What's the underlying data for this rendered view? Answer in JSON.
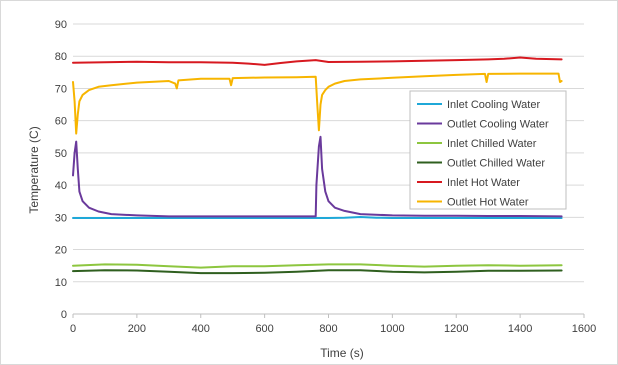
{
  "chart_data": {
    "type": "line",
    "title": "",
    "xlabel": "Time (s)",
    "ylabel": "Temperature (C)",
    "xlim": [
      0,
      1600
    ],
    "ylim": [
      0,
      90
    ],
    "x_ticks": [
      0,
      200,
      400,
      600,
      800,
      1000,
      1200,
      1400,
      1600
    ],
    "y_ticks": [
      0,
      10,
      20,
      30,
      40,
      50,
      60,
      70,
      80,
      90
    ],
    "grid": "horizontal",
    "legend_position": "right",
    "series": [
      {
        "name": "Inlet Cooling Water",
        "color": "#1fa8d8",
        "x": [
          0,
          200,
          400,
          600,
          800,
          850,
          900,
          950,
          1000,
          1200,
          1400,
          1530
        ],
        "y": [
          29.8,
          29.8,
          29.8,
          29.8,
          29.8,
          29.9,
          30.1,
          29.9,
          29.8,
          29.8,
          29.8,
          29.8
        ]
      },
      {
        "name": "Outlet Cooling Water",
        "color": "#6a3a9c",
        "x": [
          0,
          5,
          10,
          15,
          20,
          30,
          50,
          80,
          120,
          200,
          300,
          400,
          500,
          600,
          700,
          760,
          762,
          770,
          775,
          780,
          790,
          800,
          820,
          850,
          900,
          1000,
          1100,
          1200,
          1300,
          1400,
          1530
        ],
        "y": [
          43,
          50,
          53.5,
          45,
          38,
          35,
          33,
          31.8,
          31,
          30.6,
          30.3,
          30.3,
          30.3,
          30.3,
          30.3,
          30.3,
          40,
          52,
          55,
          45,
          38,
          35,
          33,
          32,
          31,
          30.6,
          30.5,
          30.5,
          30.4,
          30.4,
          30.3
        ]
      },
      {
        "name": "Inlet Chilled Water",
        "color": "#8dc63f",
        "x": [
          0,
          100,
          200,
          300,
          400,
          500,
          600,
          700,
          800,
          900,
          1000,
          1100,
          1200,
          1300,
          1400,
          1530
        ],
        "y": [
          15,
          15.4,
          15.3,
          14.8,
          14.4,
          14.8,
          14.8,
          15.1,
          15.4,
          15.4,
          15,
          14.7,
          15,
          15.1,
          15,
          15.1
        ]
      },
      {
        "name": "Outlet Chilled Water",
        "color": "#2f5f1f",
        "x": [
          0,
          100,
          200,
          300,
          400,
          500,
          600,
          700,
          800,
          900,
          1000,
          1100,
          1200,
          1300,
          1400,
          1530
        ],
        "y": [
          13.3,
          13.6,
          13.5,
          13.1,
          12.7,
          12.7,
          12.8,
          13.1,
          13.6,
          13.6,
          13.1,
          12.9,
          13.1,
          13.4,
          13.4,
          13.5
        ]
      },
      {
        "name": "Inlet Hot Water",
        "color": "#d71920",
        "x": [
          0,
          100,
          200,
          300,
          400,
          500,
          550,
          600,
          650,
          700,
          760,
          800,
          900,
          1000,
          1100,
          1200,
          1300,
          1350,
          1400,
          1450,
          1530
        ],
        "y": [
          78,
          78.1,
          78.3,
          78.1,
          78.1,
          78,
          77.7,
          77.3,
          77.9,
          78.4,
          78.8,
          78.2,
          78.3,
          78.4,
          78.6,
          78.8,
          79,
          79.2,
          79.6,
          79.2,
          79
        ]
      },
      {
        "name": "Outlet Hot Water",
        "color": "#f7b500",
        "x": [
          0,
          5,
          10,
          15,
          20,
          30,
          50,
          80,
          120,
          200,
          300,
          320,
          325,
          330,
          400,
          490,
          495,
          500,
          600,
          700,
          760,
          765,
          770,
          775,
          780,
          790,
          800,
          820,
          850,
          900,
          1000,
          1100,
          1200,
          1290,
          1295,
          1300,
          1400,
          1520,
          1525,
          1530
        ],
        "y": [
          72,
          66,
          56,
          62,
          66,
          68,
          69.5,
          70.5,
          71,
          71.8,
          72.3,
          71.5,
          70,
          72.5,
          73,
          73,
          71,
          73.2,
          73.4,
          73.5,
          73.6,
          65,
          57,
          65,
          68,
          69.5,
          70.5,
          71.5,
          72.3,
          72.8,
          73.3,
          73.8,
          74.2,
          74.5,
          72,
          74.5,
          74.6,
          74.6,
          72,
          72.3
        ]
      }
    ]
  }
}
